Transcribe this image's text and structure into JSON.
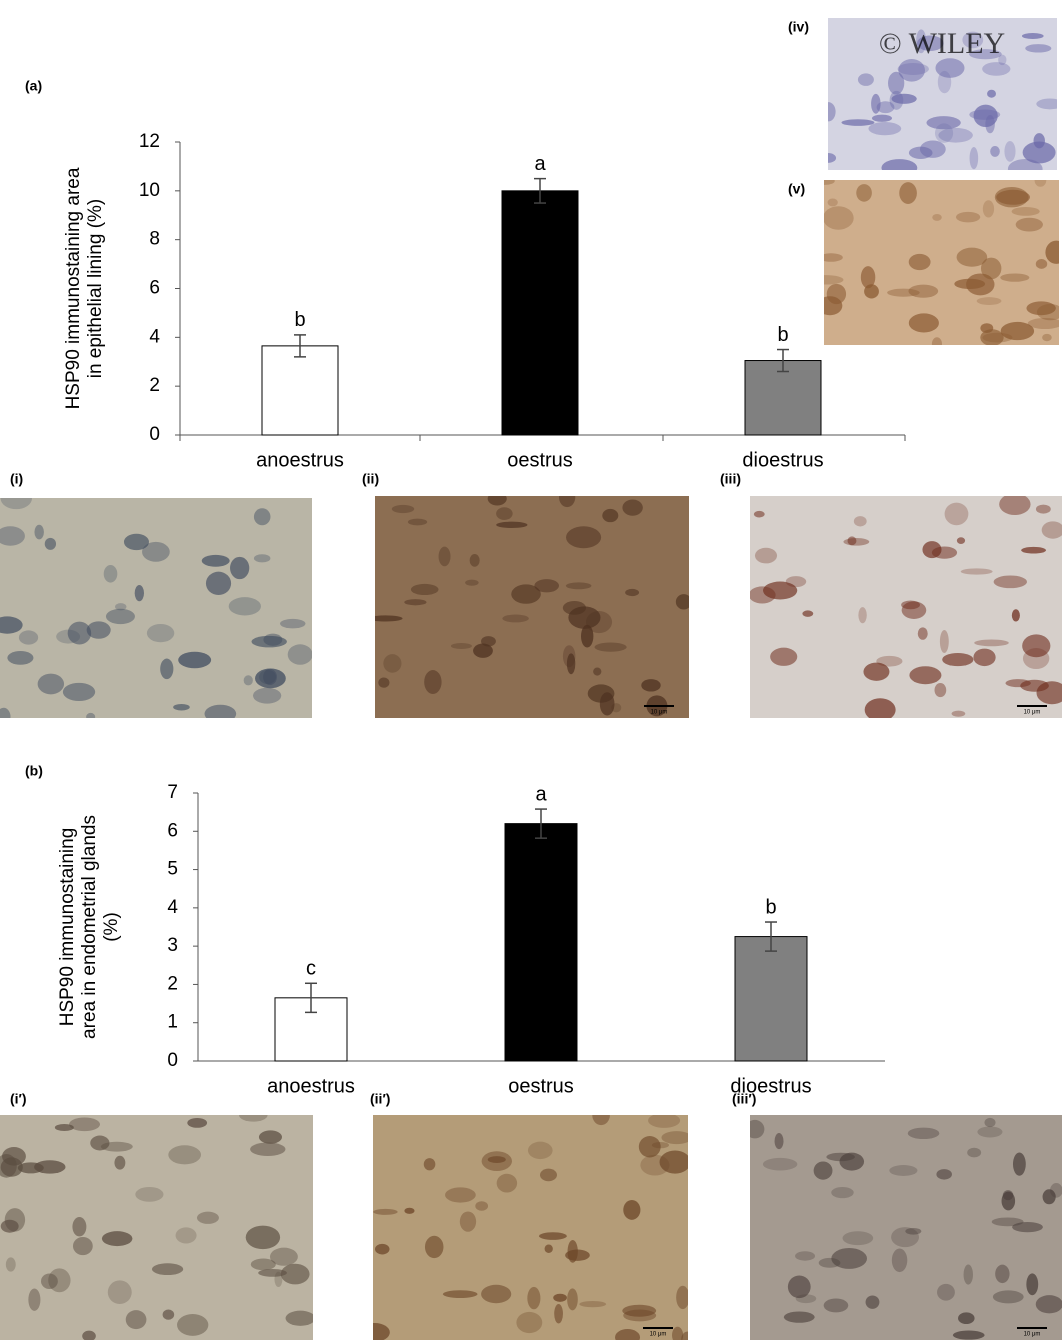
{
  "chart_data": [
    {
      "type": "bar",
      "panel_label": "(a)",
      "ylabel": [
        "HSP90 immunostaining area",
        "in epithelial lining (%)"
      ],
      "categories": [
        "anoestrus",
        "oestrus",
        "dioestrus"
      ],
      "values": [
        3.65,
        10.0,
        3.05
      ],
      "errors": [
        0.45,
        0.5,
        0.45
      ],
      "colors": [
        "#ffffff",
        "#000000",
        "#808080"
      ],
      "annotations": [
        "b",
        "a",
        "b"
      ],
      "ylim": [
        0,
        12
      ],
      "yticks": [
        0,
        2,
        4,
        6,
        8,
        10,
        12
      ]
    },
    {
      "type": "bar",
      "panel_label": "(b)",
      "ylabel": [
        "HSP90 immunostaining",
        "area in endometrial glands",
        "(%)"
      ],
      "categories": [
        "anoestrus",
        "oestrus",
        "dioestrus"
      ],
      "values": [
        1.65,
        6.2,
        3.25
      ],
      "errors": [
        0.38,
        0.38,
        0.38
      ],
      "colors": [
        "#ffffff",
        "#000000",
        "#808080"
      ],
      "annotations": [
        "c",
        "a",
        "b"
      ],
      "ylim": [
        0,
        7
      ],
      "yticks": [
        0,
        1,
        2,
        3,
        4,
        5,
        6,
        7
      ]
    }
  ],
  "micrographs": [
    "(iv)",
    "(v)",
    "(i)",
    "(ii)",
    "(iii)",
    "(i′)",
    "(ii′)",
    "(iii′)"
  ],
  "watermark": "© WILEY",
  "scale_bar": "10 μm"
}
